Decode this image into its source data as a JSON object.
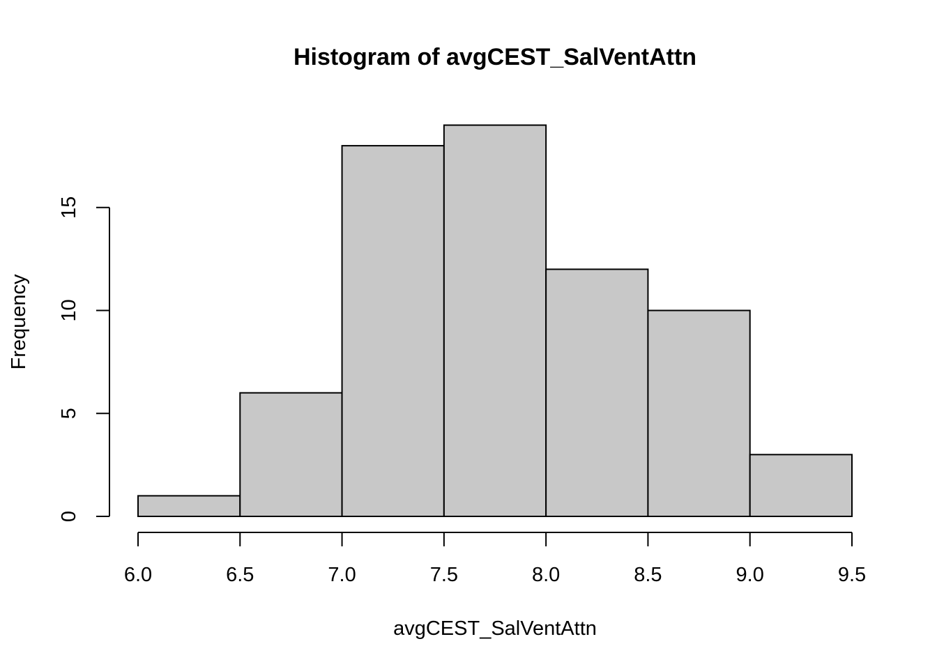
{
  "chart_data": {
    "type": "bar",
    "title": "Histogram of avgCEST_SalVentAttn",
    "xlabel": "avgCEST_SalVentAttn",
    "ylabel": "Frequency",
    "bins": [
      {
        "from": 6.0,
        "to": 6.5,
        "count": 1
      },
      {
        "from": 6.5,
        "to": 7.0,
        "count": 6
      },
      {
        "from": 7.0,
        "to": 7.5,
        "count": 18
      },
      {
        "from": 7.5,
        "to": 8.0,
        "count": 19
      },
      {
        "from": 8.0,
        "to": 8.5,
        "count": 12
      },
      {
        "from": 8.5,
        "to": 9.0,
        "count": 10
      },
      {
        "from": 9.0,
        "to": 9.5,
        "count": 3
      }
    ],
    "x_ticks": [
      "6.0",
      "6.5",
      "7.0",
      "7.5",
      "8.0",
      "8.5",
      "9.0",
      "9.5"
    ],
    "y_ticks": [
      "0",
      "5",
      "10",
      "15"
    ],
    "xlim": [
      6.0,
      9.5
    ],
    "ylim": [
      0,
      19
    ],
    "grid": false,
    "bar_color": "#c8c8c8",
    "edge_color": "#000000"
  }
}
